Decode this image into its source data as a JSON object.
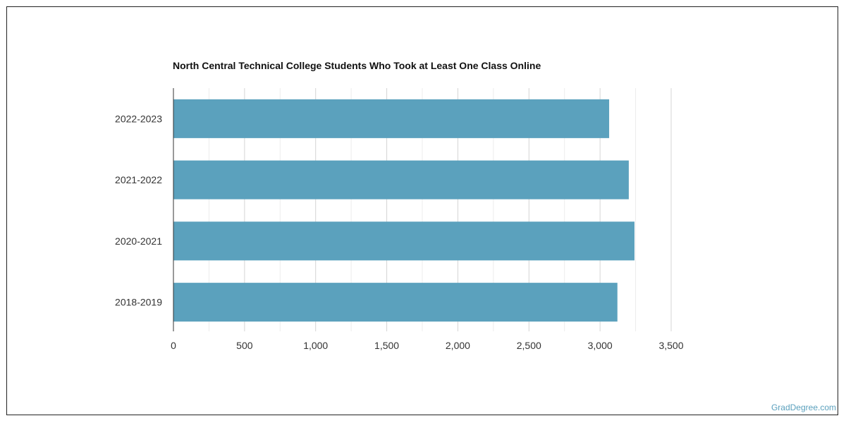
{
  "chart_data": {
    "type": "bar",
    "orientation": "horizontal",
    "title": "North Central Technical College Students Who Took at Least One Class Online",
    "categories": [
      "2022-2023",
      "2021-2022",
      "2020-2021",
      "2018-2019"
    ],
    "values": [
      3064,
      3202,
      3242,
      3122
    ],
    "xlim": [
      0,
      3500
    ],
    "x_ticks": [
      "0",
      "500",
      "1,000",
      "1,500",
      "2,000",
      "2,500",
      "3,000",
      "3,500"
    ],
    "grid": true,
    "bar_color": "#5ba1bd"
  },
  "watermark": "GradDegree.com"
}
